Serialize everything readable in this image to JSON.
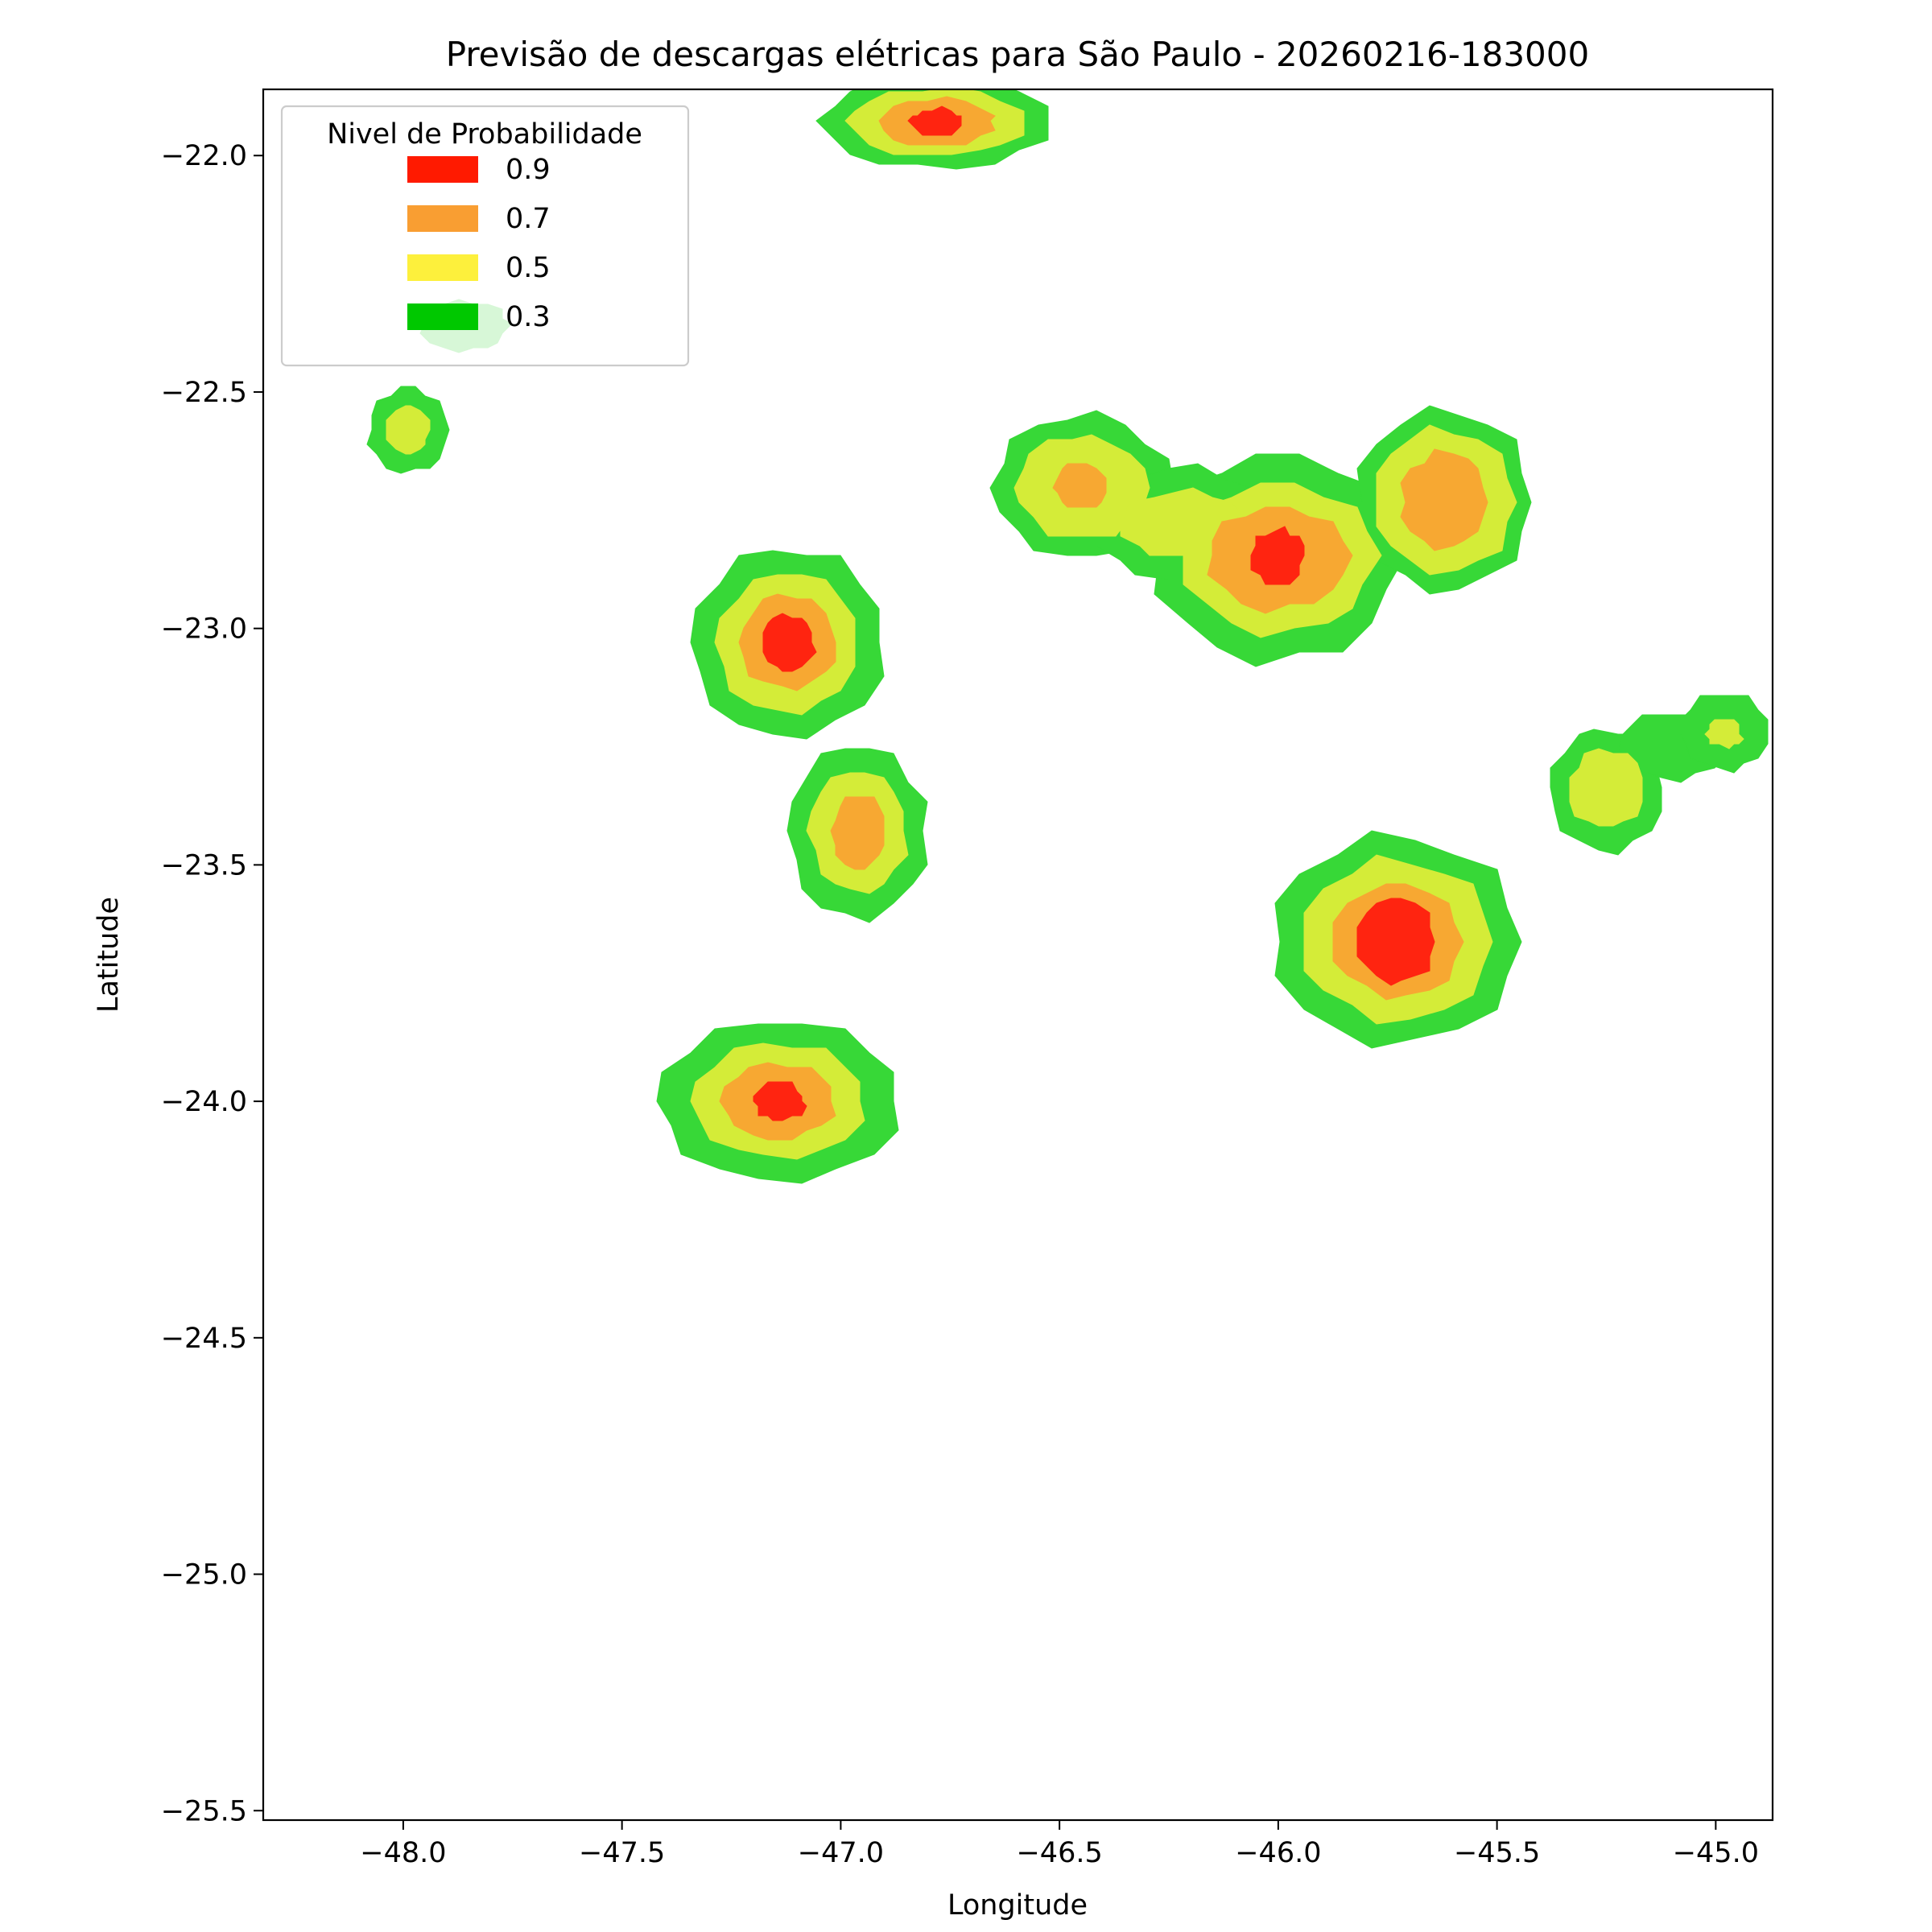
{
  "chart_data": {
    "type": "contour",
    "title": "Previsão de descargas elétricas para São Paulo - 20260216-183000",
    "xlabel": "Longitude",
    "ylabel": "Latitude",
    "xlim": [
      -48.32,
      -44.87
    ],
    "ylim": [
      -25.52,
      -21.86
    ],
    "xticks": [
      -48.0,
      -47.5,
      -47.0,
      -46.5,
      -46.0,
      -45.5,
      -45.0
    ],
    "xtick_labels": [
      "−48.0",
      "−47.5",
      "−47.0",
      "−46.5",
      "−46.0",
      "−45.5",
      "−45.0"
    ],
    "yticks": [
      -22.0,
      -22.5,
      -23.0,
      -23.5,
      -24.0,
      -24.5,
      -25.0,
      -25.5
    ],
    "ytick_labels": [
      "−22.0",
      "−22.5",
      "−23.0",
      "−23.5",
      "−24.0",
      "−24.5",
      "−25.0",
      "−25.5"
    ],
    "legend": {
      "title": "Nivel de Probabilidade",
      "position": "top-left",
      "entries": [
        {
          "label": "0.9",
          "color": "#ff1a00"
        },
        {
          "label": "0.7",
          "color": "#f99e32"
        },
        {
          "label": "0.5",
          "color": "#fdf03c"
        },
        {
          "label": "0.3",
          "color": "#00c800"
        }
      ]
    },
    "fill_colors": {
      "level_0_3": "#37d837",
      "level_0_5": "#d4ec38",
      "level_0_7": "#f7a832",
      "level_0_9": "#ff2410"
    },
    "storm_cells": [
      {
        "id": "north",
        "lon": -46.78,
        "lat": -21.93,
        "peak": 0.9,
        "levels": [
          {
            "level": 0.3,
            "rx": 0.26,
            "ry": 0.1
          },
          {
            "level": 0.5,
            "rx": 0.2,
            "ry": 0.07
          },
          {
            "level": 0.7,
            "rx": 0.13,
            "ry": 0.05
          },
          {
            "level": 0.9,
            "rx": 0.06,
            "ry": 0.03
          }
        ]
      },
      {
        "id": "northwest-small",
        "lon": -47.99,
        "lat": -22.58,
        "peak": 0.5,
        "levels": [
          {
            "level": 0.3,
            "rx": 0.09,
            "ry": 0.09
          },
          {
            "level": 0.5,
            "rx": 0.05,
            "ry": 0.05
          }
        ]
      },
      {
        "id": "northwest-band",
        "lon": -47.86,
        "lat": -22.36,
        "peak": 0.3,
        "levels": [
          {
            "level": 0.3,
            "rx": 0.1,
            "ry": 0.05
          }
        ]
      },
      {
        "id": "campinas",
        "lon": -47.12,
        "lat": -23.03,
        "peak": 0.9,
        "levels": [
          {
            "level": 0.3,
            "rx": 0.22,
            "ry": 0.2
          },
          {
            "level": 0.5,
            "rx": 0.16,
            "ry": 0.15
          },
          {
            "level": 0.7,
            "rx": 0.11,
            "ry": 0.1
          },
          {
            "level": 0.9,
            "rx": 0.06,
            "ry": 0.06
          }
        ]
      },
      {
        "id": "jundiai",
        "lon": -46.96,
        "lat": -23.43,
        "peak": 0.7,
        "levels": [
          {
            "level": 0.3,
            "rx": 0.16,
            "ry": 0.18
          },
          {
            "level": 0.5,
            "rx": 0.11,
            "ry": 0.13
          },
          {
            "level": 0.7,
            "rx": 0.06,
            "ry": 0.08
          }
        ]
      },
      {
        "id": "sorocaba",
        "lon": -47.14,
        "lat": -24.0,
        "peak": 0.9,
        "levels": [
          {
            "level": 0.3,
            "rx": 0.28,
            "ry": 0.17
          },
          {
            "level": 0.5,
            "rx": 0.2,
            "ry": 0.12
          },
          {
            "level": 0.7,
            "rx": 0.13,
            "ry": 0.08
          },
          {
            "level": 0.9,
            "rx": 0.06,
            "ry": 0.04
          }
        ]
      },
      {
        "id": "atibaia",
        "lon": -46.45,
        "lat": -22.7,
        "peak": 0.7,
        "levels": [
          {
            "level": 0.3,
            "rx": 0.2,
            "ry": 0.15
          },
          {
            "level": 0.5,
            "rx": 0.15,
            "ry": 0.11
          },
          {
            "level": 0.7,
            "rx": 0.06,
            "ry": 0.05
          }
        ]
      },
      {
        "id": "braganca",
        "lon": -46.0,
        "lat": -22.85,
        "peak": 0.9,
        "levels": [
          {
            "level": 0.3,
            "rx": 0.28,
            "ry": 0.22
          },
          {
            "level": 0.5,
            "rx": 0.22,
            "ry": 0.16
          },
          {
            "level": 0.7,
            "rx": 0.16,
            "ry": 0.11
          },
          {
            "level": 0.9,
            "rx": 0.06,
            "ry": 0.06
          }
        ]
      },
      {
        "id": "corridor",
        "lon": -46.22,
        "lat": -22.78,
        "peak": 0.5,
        "levels": [
          {
            "level": 0.3,
            "rx": 0.2,
            "ry": 0.12
          },
          {
            "level": 0.5,
            "rx": 0.14,
            "ry": 0.07
          }
        ]
      },
      {
        "id": "sjcampos",
        "lon": -45.62,
        "lat": -22.73,
        "peak": 0.7,
        "levels": [
          {
            "level": 0.3,
            "rx": 0.2,
            "ry": 0.19
          },
          {
            "level": 0.5,
            "rx": 0.16,
            "ry": 0.15
          },
          {
            "level": 0.7,
            "rx": 0.1,
            "ry": 0.1
          }
        ]
      },
      {
        "id": "mogi",
        "lon": -45.73,
        "lat": -23.66,
        "peak": 0.9,
        "levels": [
          {
            "level": 0.3,
            "rx": 0.28,
            "ry": 0.22
          },
          {
            "level": 0.5,
            "rx": 0.22,
            "ry": 0.17
          },
          {
            "level": 0.7,
            "rx": 0.15,
            "ry": 0.12
          },
          {
            "level": 0.9,
            "rx": 0.09,
            "ry": 0.09
          }
        ]
      },
      {
        "id": "east",
        "lon": -45.25,
        "lat": -23.34,
        "peak": 0.5,
        "levels": [
          {
            "level": 0.3,
            "rx": 0.13,
            "ry": 0.13
          },
          {
            "level": 0.5,
            "rx": 0.09,
            "ry": 0.08
          }
        ]
      },
      {
        "id": "east-corridor",
        "lon": -45.1,
        "lat": -23.25,
        "peak": 0.3,
        "levels": [
          {
            "level": 0.3,
            "rx": 0.12,
            "ry": 0.07
          }
        ]
      },
      {
        "id": "far-east",
        "lon": -44.98,
        "lat": -23.22,
        "peak": 0.5,
        "levels": [
          {
            "level": 0.3,
            "rx": 0.1,
            "ry": 0.08
          },
          {
            "level": 0.5,
            "rx": 0.04,
            "ry": 0.03
          }
        ]
      }
    ]
  }
}
